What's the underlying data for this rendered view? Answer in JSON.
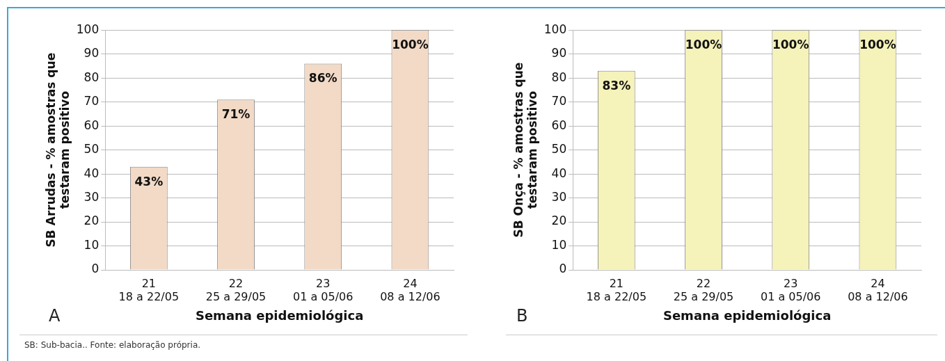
{
  "chart_data": [
    {
      "type": "bar",
      "ylabel": "SB Arrudas - % amostras que testaram positivo",
      "xlabel": "Semana epidemiológica",
      "categories": [
        "21\n18 a 22/05",
        "22\n25 a 29/05",
        "23\n01 a 05/06",
        "24\n08 a 12/06"
      ],
      "values": [
        43,
        71,
        86,
        100
      ],
      "value_labels": [
        "43%",
        "71%",
        "86%",
        "100%"
      ],
      "color": "#f2dac6",
      "ylim": [
        0,
        100
      ],
      "yticks": [
        0,
        10,
        20,
        30,
        40,
        50,
        60,
        70,
        80,
        90,
        100
      ],
      "grid": "y",
      "annotations": [
        "A",
        "SB: Sub-bacia.. Fonte: elaboração própria."
      ]
    },
    {
      "type": "bar",
      "ylabel": "SB Onça - % amostras que testaram positivo",
      "xlabel": "Semana epidemiológica",
      "categories": [
        "21\n18 a 22/05",
        "22\n25 a 29/05",
        "23\n01 a 05/06",
        "24\n08 a 12/06"
      ],
      "values": [
        83,
        100,
        100,
        100
      ],
      "value_labels": [
        "83%",
        "100%",
        "100%",
        "100%"
      ],
      "color": "#f5f2ba",
      "ylim": [
        0,
        100
      ],
      "yticks": [
        0,
        10,
        20,
        30,
        40,
        50,
        60,
        70,
        80,
        90,
        100
      ],
      "grid": "y",
      "annotations": [
        "B"
      ]
    }
  ]
}
